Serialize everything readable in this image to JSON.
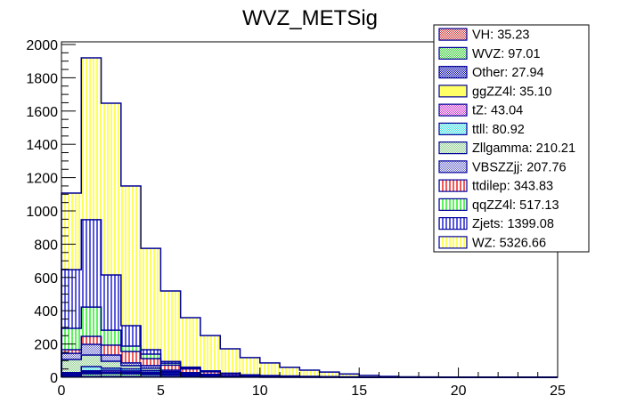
{
  "chart_data": {
    "type": "bar",
    "subtype": "stacked-histogram",
    "title": "WVZ_METSig",
    "xlabel": "",
    "ylabel": "",
    "xlim": [
      0,
      25
    ],
    "ylim": [
      0,
      2000
    ],
    "bin_edges": [
      0,
      1,
      2,
      3,
      4,
      5,
      6,
      7,
      8,
      9,
      10,
      11,
      12,
      13,
      14,
      15,
      16,
      17,
      18,
      19,
      20,
      21,
      22,
      23,
      24,
      25
    ],
    "x_ticks": [
      "0",
      "5",
      "10",
      "15",
      "20",
      "25"
    ],
    "y_ticks": [
      "0",
      "200",
      "400",
      "600",
      "800",
      "1000",
      "1200",
      "1400",
      "1600",
      "1800",
      "2000"
    ],
    "legend_position": "top-right",
    "series": [
      {
        "name": "VH",
        "label": "VH: 35.23",
        "color": "#cc3333",
        "pattern": "crosshatch",
        "values": [
          4,
          5,
          5,
          5,
          4,
          3,
          2,
          1,
          1,
          0.5,
          0.3,
          0.2,
          0.1,
          0.1,
          0.1,
          0,
          0,
          0,
          0,
          0,
          0,
          0,
          0,
          0,
          0
        ]
      },
      {
        "name": "WVZ",
        "label": "WVZ: 97.01",
        "color": "#33cc33",
        "pattern": "crosshatch",
        "values": [
          6,
          16,
          18,
          16,
          12,
          9,
          7,
          5,
          3,
          2,
          1,
          0.8,
          0.5,
          0.4,
          0.3,
          0.2,
          0.1,
          0,
          0,
          0,
          0,
          0,
          0,
          0,
          0
        ]
      },
      {
        "name": "Other",
        "label": "Other: 27.94",
        "color": "#0000aa",
        "pattern": "crosshatch",
        "values": [
          4,
          4,
          4,
          4,
          3,
          2,
          2,
          1,
          1,
          0.5,
          0.5,
          0.4,
          0.3,
          0.2,
          0.1,
          0,
          0,
          0,
          0,
          0,
          0,
          0,
          0,
          0,
          0
        ]
      },
      {
        "name": "ggZZ4l",
        "label": "ggZZ4l: 35.10",
        "color": "#ffff66",
        "pattern": "solid",
        "values": [
          4,
          6,
          5,
          5,
          4,
          3,
          2,
          1,
          1,
          0.5,
          0.5,
          0.3,
          0.2,
          0.2,
          0.1,
          0,
          0,
          0,
          0,
          0,
          0,
          0,
          0,
          0,
          0
        ]
      },
      {
        "name": "tZ",
        "label": "tZ: 43.04",
        "color": "#cc33cc",
        "pattern": "crosshatch",
        "values": [
          2,
          8,
          10,
          8,
          7,
          5,
          3,
          2,
          1,
          1,
          0.5,
          0.5,
          0.3,
          0.2,
          0.1,
          0,
          0,
          0,
          0,
          0,
          0,
          0,
          0,
          0,
          0
        ]
      },
      {
        "name": "ttll",
        "label": "ttll: 80.92",
        "color": "#33dddd",
        "pattern": "crosshatch",
        "values": [
          8,
          25,
          13,
          12,
          10,
          8,
          4,
          3,
          1,
          0.5,
          0.5,
          0.4,
          0.3,
          0.2,
          0.1,
          0,
          0,
          0,
          0,
          0,
          0,
          0,
          0,
          0,
          0
        ]
      },
      {
        "name": "Zllgamma",
        "label": "Zllgamma: 210.21",
        "color": "#88cc88",
        "pattern": "crosshatch",
        "values": [
          79,
          70,
          41,
          20,
          15,
          5,
          3,
          2,
          1,
          1,
          0.5,
          0.5,
          0.3,
          0.2,
          0.1,
          0,
          0,
          0,
          0,
          0,
          0,
          0,
          0,
          0,
          0
        ]
      },
      {
        "name": "VBSZZjj",
        "label": "VBSZZjj: 207.76",
        "color": "#6666cc",
        "pattern": "crosshatch",
        "values": [
          37,
          64,
          38,
          16,
          15,
          8,
          5,
          3,
          2,
          1,
          1,
          0.5,
          0.5,
          0.3,
          0.2,
          0.1,
          0,
          0,
          0,
          0,
          0,
          0,
          0,
          0,
          0
        ]
      },
      {
        "name": "ttdilep",
        "label": "ttdilep: 343.83",
        "color": "#ee0000",
        "pattern": "vertical",
        "values": [
          22,
          48,
          59,
          69,
          42,
          30,
          22,
          15,
          10,
          6,
          4,
          3,
          2,
          1.5,
          1,
          0.8,
          0.5,
          0.3,
          0.3,
          0.2,
          0,
          0,
          0,
          0,
          0
        ]
      },
      {
        "name": "qqZZ4l",
        "label": "qqZZ4l: 517.13",
        "color": "#00ee00",
        "pattern": "vertical",
        "values": [
          128,
          176,
          90,
          32,
          27,
          12,
          6,
          3,
          2,
          1,
          1,
          0.5,
          0.3,
          0.2,
          0.1,
          0,
          0,
          0,
          0,
          0,
          0,
          0,
          0,
          0,
          0
        ]
      },
      {
        "name": "Zjets",
        "label": "Zjets: 1399.08",
        "color": "#0000cc",
        "pattern": "vertical",
        "values": [
          353,
          525,
          332,
          123,
          27,
          10,
          5,
          3,
          2,
          1,
          0.5,
          0.3,
          0.2,
          0.1,
          0,
          0,
          0,
          0,
          0,
          0,
          0,
          0,
          0,
          0,
          0
        ]
      },
      {
        "name": "WZ",
        "label": "WZ: 5326.66",
        "color": "#ffff00",
        "pattern": "vertical",
        "values": [
          460,
          973,
          1032,
          840,
          609,
          424,
          297,
          212,
          146,
          103,
          76,
          53,
          38,
          28,
          18,
          10,
          5,
          2.5,
          1.5,
          1,
          0,
          0,
          0,
          0,
          0
        ]
      }
    ]
  }
}
